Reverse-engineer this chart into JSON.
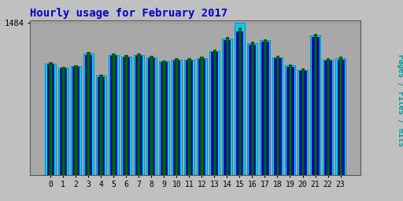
{
  "title": "Hourly usage for February 2017",
  "title_color": "#0000cc",
  "title_fontsize": 10,
  "ylabel_right": "Pages / Files / Hits",
  "ylabel_right_color": "#009999",
  "background_color": "#c0c0c0",
  "plot_bg_color": "#a8a8a8",
  "hours": [
    0,
    1,
    2,
    3,
    4,
    5,
    6,
    7,
    8,
    9,
    10,
    11,
    12,
    13,
    14,
    15,
    16,
    17,
    18,
    19,
    20,
    21,
    22,
    23
  ],
  "pages": [
    1100,
    1060,
    1075,
    1200,
    980,
    1190,
    1175,
    1190,
    1165,
    1120,
    1145,
    1145,
    1160,
    1225,
    1350,
    1440,
    1300,
    1330,
    1165,
    1080,
    1040,
    1380,
    1145,
    1155
  ],
  "files": [
    1080,
    1040,
    1055,
    1175,
    960,
    1165,
    1150,
    1165,
    1140,
    1100,
    1120,
    1120,
    1135,
    1200,
    1320,
    1400,
    1270,
    1300,
    1140,
    1060,
    1020,
    1350,
    1120,
    1130
  ],
  "hits": [
    1090,
    1050,
    1065,
    1185,
    970,
    1175,
    1160,
    1175,
    1150,
    1110,
    1130,
    1130,
    1145,
    1210,
    1335,
    1484,
    1285,
    1315,
    1150,
    1070,
    1030,
    1365,
    1130,
    1140
  ],
  "pages_color": "#006600",
  "files_color": "#0000cc",
  "hits_color": "#00ccff",
  "hits_edge": "#0088aa",
  "files_edge": "#000088",
  "pages_edge": "#004400",
  "ymax": 1484,
  "ytick_label": "1484",
  "grid_color": "#999999"
}
